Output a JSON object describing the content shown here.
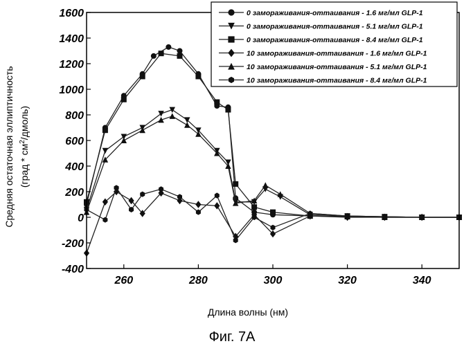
{
  "chart_data": {
    "type": "line",
    "title": "",
    "xlabel": "Длина волны (нм)",
    "ylabel_line1": "Средняя остаточная эллиптичность",
    "ylabel_line2_pre": "(град * см",
    "ylabel_line2_sup": "2",
    "ylabel_line2_post": "/дмоль)",
    "xlim": [
      250,
      350
    ],
    "ylim": [
      -400,
      1600
    ],
    "x_ticks": [
      "260",
      "280",
      "300",
      "320",
      "340"
    ],
    "y_ticks": [
      "1600",
      "1400",
      "1200",
      "1000",
      "800",
      "600",
      "400",
      "200",
      "0",
      "-200",
      "-400"
    ],
    "grid": false,
    "legend_position": "top-right",
    "series": [
      {
        "name": "0 замораживания-оттаивания - 1.6 мг/мл GLP-1",
        "marker": "circle",
        "x": [
          250,
          255,
          260,
          265,
          268,
          272,
          275,
          280,
          285,
          288,
          290,
          295,
          300,
          310,
          320,
          330,
          340,
          350
        ],
        "y": [
          100,
          700,
          950,
          1120,
          1260,
          1330,
          1300,
          1120,
          870,
          860,
          150,
          40,
          20,
          10,
          5,
          0,
          0,
          0
        ]
      },
      {
        "name": "0 замораживания-оттаивания - 5.1 мг/мл GLP-1",
        "marker": "triangle-down",
        "x": [
          250,
          255,
          260,
          265,
          270,
          273,
          277,
          280,
          285,
          288,
          290,
          295,
          298,
          302,
          310,
          320,
          330,
          340,
          350
        ],
        "y": [
          60,
          520,
          630,
          700,
          810,
          840,
          760,
          680,
          520,
          430,
          120,
          120,
          220,
          160,
          20,
          10,
          5,
          0,
          0
        ]
      },
      {
        "name": "0 замораживания-оттаивания - 8.4 мг/мл GLP-1",
        "marker": "square",
        "x": [
          250,
          255,
          260,
          265,
          270,
          275,
          280,
          285,
          288,
          290,
          295,
          300,
          310,
          320,
          330,
          340,
          350
        ],
        "y": [
          120,
          680,
          920,
          1100,
          1280,
          1260,
          1100,
          900,
          840,
          260,
          80,
          40,
          10,
          5,
          0,
          0,
          0
        ]
      },
      {
        "name": "10 замораживания-оттаивания - 1.6 мг/мл GLP-1",
        "marker": "diamond",
        "x": [
          250,
          255,
          258,
          262,
          265,
          270,
          275,
          280,
          285,
          290,
          295,
          300,
          310,
          320,
          330,
          340,
          350
        ],
        "y": [
          -280,
          120,
          200,
          130,
          30,
          190,
          130,
          100,
          90,
          -150,
          20,
          -130,
          10,
          0,
          0,
          0,
          0
        ]
      },
      {
        "name": "10 замораживания-оттаивания - 5.1 мг/мл GLP-1",
        "marker": "triangle-up",
        "x": [
          250,
          255,
          260,
          265,
          270,
          273,
          277,
          280,
          285,
          288,
          290,
          295,
          298,
          302,
          310,
          320,
          330,
          340,
          350
        ],
        "y": [
          40,
          450,
          600,
          680,
          760,
          790,
          720,
          650,
          500,
          400,
          110,
          130,
          250,
          180,
          30,
          10,
          5,
          0,
          0
        ]
      },
      {
        "name": "10 замораживания-оттаивания - 8.4 мг/мл GLP-1",
        "marker": "hexagon",
        "x": [
          250,
          255,
          258,
          262,
          265,
          270,
          275,
          280,
          285,
          290,
          295,
          300,
          310,
          320,
          330,
          340,
          350
        ],
        "y": [
          60,
          -20,
          230,
          60,
          180,
          220,
          160,
          40,
          170,
          -180,
          0,
          -80,
          30,
          10,
          5,
          0,
          0
        ]
      }
    ]
  },
  "caption": "Фиг. 7А"
}
